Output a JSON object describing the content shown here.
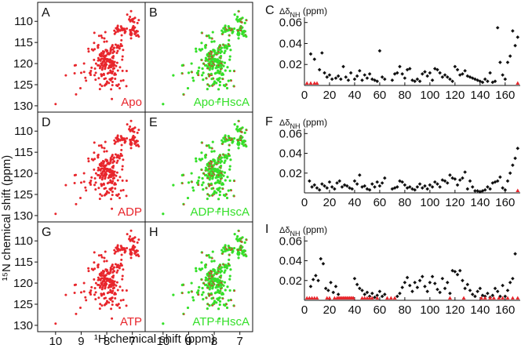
{
  "figure": {
    "y_axis_label": "¹⁵N chemical shift (ppm)",
    "x_axis_label": "¹H chemical shift (ppm)",
    "colors": {
      "red": "#e8262c",
      "green": "#35e02a",
      "black": "#111111"
    }
  },
  "chart_data": [
    {
      "type": "scatter",
      "subtype": "nmr_hsqc_spectra",
      "xlabel": "¹H chemical shift (ppm)",
      "ylabel": "¹⁵N chemical shift (ppm)",
      "x_ticks": [
        "10",
        "9",
        "8",
        "7"
      ],
      "y_ticks": [
        "110",
        "115",
        "120",
        "125",
        "130"
      ],
      "xlim": [
        10.7,
        6.5
      ],
      "ylim": [
        105.5,
        131.5
      ],
      "panels": [
        {
          "label": "A",
          "condition": "Apo",
          "color": "red"
        },
        {
          "label": "B",
          "condition": "Apo+HscA",
          "color": "green"
        },
        {
          "label": "D",
          "condition": "ADP",
          "color": "red"
        },
        {
          "label": "E",
          "condition": "ADP+HscA",
          "color": "green"
        },
        {
          "label": "G",
          "condition": "ATP",
          "color": "red"
        },
        {
          "label": "H",
          "condition": "ATP+HscA",
          "color": "green"
        }
      ]
    },
    {
      "type": "scatter",
      "subtype": "chemical_shift_perturbation",
      "ylabel_symbol": "Δδ",
      "ylabel_subscript": "NH",
      "ylabel_units": "(ppm)",
      "x_ticks": [
        "0",
        "20",
        "40",
        "60",
        "80",
        "100",
        "120",
        "140",
        "160"
      ],
      "y_ticks": [
        "0.02",
        "0.04",
        "0.06"
      ],
      "xlim": [
        0,
        172
      ],
      "ylim": [
        0,
        0.065
      ],
      "panels": [
        {
          "label": "C",
          "points": [
            [
              5,
              0.03
            ],
            [
              8,
              0.025
            ],
            [
              12,
              0.015
            ],
            [
              14,
              0.031
            ],
            [
              16,
              0.012
            ],
            [
              18,
              0.008
            ],
            [
              20,
              0.01
            ],
            [
              22,
              0.006
            ],
            [
              25,
              0.007
            ],
            [
              27,
              0.009
            ],
            [
              29,
              0.006
            ],
            [
              31,
              0.018
            ],
            [
              33,
              0.008
            ],
            [
              35,
              0.005
            ],
            [
              37,
              0.012
            ],
            [
              40,
              0.006
            ],
            [
              42,
              0.009
            ],
            [
              44,
              0.014
            ],
            [
              46,
              0.005
            ],
            [
              48,
              0.01
            ],
            [
              50,
              0.007
            ],
            [
              52,
              0.011
            ],
            [
              54,
              0.006
            ],
            [
              56,
              0.005
            ],
            [
              58,
              0.004
            ],
            [
              60,
              0.033
            ],
            [
              62,
              0.008
            ],
            [
              64,
              0.006
            ],
            [
              70,
              0.005
            ],
            [
              72,
              0.011
            ],
            [
              74,
              0.012
            ],
            [
              76,
              0.018
            ],
            [
              78,
              0.011
            ],
            [
              80,
              0.007
            ],
            [
              82,
              0.015
            ],
            [
              84,
              0.016
            ],
            [
              86,
              0.005
            ],
            [
              88,
              0.004
            ],
            [
              90,
              0.006
            ],
            [
              92,
              0.004
            ],
            [
              94,
              0.011
            ],
            [
              96,
              0.013
            ],
            [
              98,
              0.009
            ],
            [
              100,
              0.012
            ],
            [
              102,
              0.005
            ],
            [
              104,
              0.016
            ],
            [
              106,
              0.015
            ],
            [
              108,
              0.012
            ],
            [
              110,
              0.008
            ],
            [
              112,
              0.01
            ],
            [
              114,
              0.008
            ],
            [
              116,
              0.006
            ],
            [
              118,
              0.004
            ],
            [
              120,
              0.018
            ],
            [
              122,
              0.015
            ],
            [
              124,
              0.01
            ],
            [
              126,
              0.011
            ],
            [
              128,
              0.014
            ],
            [
              130,
              0.009
            ],
            [
              132,
              0.008
            ],
            [
              134,
              0.007
            ],
            [
              136,
              0.006
            ],
            [
              138,
              0.005
            ],
            [
              140,
              0.004
            ],
            [
              142,
              0.003
            ],
            [
              144,
              0.006
            ],
            [
              146,
              0.004
            ],
            [
              148,
              0.012
            ],
            [
              150,
              0.003
            ],
            [
              152,
              0.004
            ],
            [
              154,
              0.055
            ],
            [
              156,
              0.022
            ],
            [
              158,
              0.01
            ],
            [
              160,
              0.006
            ],
            [
              162,
              0.022
            ],
            [
              164,
              0.028
            ],
            [
              166,
              0.052
            ],
            [
              168,
              0.038
            ],
            [
              170,
              0.046
            ]
          ],
          "red_markers": [
            2,
            5,
            8,
            10,
            170
          ]
        },
        {
          "label": "F",
          "points": [
            [
              4,
              0.012
            ],
            [
              6,
              0.006
            ],
            [
              8,
              0.008
            ],
            [
              10,
              0.005
            ],
            [
              12,
              0.003
            ],
            [
              14,
              0.009
            ],
            [
              16,
              0.007
            ],
            [
              18,
              0.005
            ],
            [
              20,
              0.011
            ],
            [
              22,
              0.006
            ],
            [
              24,
              0.004
            ],
            [
              26,
              0.01
            ],
            [
              28,
              0.012
            ],
            [
              30,
              0.006
            ],
            [
              32,
              0.008
            ],
            [
              34,
              0.007
            ],
            [
              36,
              0.005
            ],
            [
              38,
              0.004
            ],
            [
              40,
              0.012
            ],
            [
              42,
              0.009
            ],
            [
              44,
              0.018
            ],
            [
              46,
              0.006
            ],
            [
              48,
              0.007
            ],
            [
              50,
              0.004
            ],
            [
              52,
              0.003
            ],
            [
              54,
              0.009
            ],
            [
              56,
              0.006
            ],
            [
              58,
              0.011
            ],
            [
              60,
              0.007
            ],
            [
              62,
              0.01
            ],
            [
              64,
              0.015
            ],
            [
              70,
              0.004
            ],
            [
              72,
              0.005
            ],
            [
              74,
              0.006
            ],
            [
              76,
              0.012
            ],
            [
              78,
              0.011
            ],
            [
              80,
              0.008
            ],
            [
              82,
              0.005
            ],
            [
              84,
              0.006
            ],
            [
              86,
              0.004
            ],
            [
              88,
              0.003
            ],
            [
              90,
              0.006
            ],
            [
              92,
              0.009
            ],
            [
              94,
              0.005
            ],
            [
              96,
              0.007
            ],
            [
              98,
              0.004
            ],
            [
              100,
              0.008
            ],
            [
              102,
              0.006
            ],
            [
              104,
              0.011
            ],
            [
              106,
              0.009
            ],
            [
              108,
              0.006
            ],
            [
              110,
              0.013
            ],
            [
              112,
              0.012
            ],
            [
              114,
              0.01
            ],
            [
              116,
              0.018
            ],
            [
              118,
              0.015
            ],
            [
              120,
              0.014
            ],
            [
              122,
              0.008
            ],
            [
              124,
              0.013
            ],
            [
              126,
              0.015
            ],
            [
              128,
              0.021
            ],
            [
              130,
              0.004
            ],
            [
              132,
              0.012
            ],
            [
              134,
              0.006
            ],
            [
              136,
              0.002
            ],
            [
              138,
              0.002
            ],
            [
              140,
              0.001
            ],
            [
              142,
              0.002
            ],
            [
              144,
              0.003
            ],
            [
              146,
              0.006
            ],
            [
              148,
              0.004
            ],
            [
              150,
              0.01
            ],
            [
              152,
              0.011
            ],
            [
              154,
              0.012
            ],
            [
              156,
              0.016
            ],
            [
              158,
              0.005
            ],
            [
              160,
              0.003
            ],
            [
              162,
              0.012
            ],
            [
              164,
              0.02
            ],
            [
              166,
              0.028
            ],
            [
              168,
              0.035
            ],
            [
              170,
              0.045
            ]
          ],
          "red_markers": [
            170
          ]
        },
        {
          "label": "I",
          "points": [
            [
              5,
              0.014
            ],
            [
              7,
              0.021
            ],
            [
              9,
              0.025
            ],
            [
              11,
              0.02
            ],
            [
              13,
              0.042
            ],
            [
              15,
              0.037
            ],
            [
              17,
              0.012
            ],
            [
              19,
              0.01
            ],
            [
              21,
              0.018
            ],
            [
              23,
              0.008
            ],
            [
              25,
              0.014
            ],
            [
              27,
              0.006
            ],
            [
              40,
              0.022
            ],
            [
              42,
              0.016
            ],
            [
              44,
              0.012
            ],
            [
              46,
              0.01
            ],
            [
              48,
              0.006
            ],
            [
              50,
              0.008
            ],
            [
              52,
              0.004
            ],
            [
              54,
              0.007
            ],
            [
              56,
              0.003
            ],
            [
              58,
              0.005
            ],
            [
              60,
              0.009
            ],
            [
              62,
              0.004
            ],
            [
              64,
              0.006
            ],
            [
              74,
              0.004
            ],
            [
              76,
              0.007
            ],
            [
              78,
              0.013
            ],
            [
              80,
              0.018
            ],
            [
              82,
              0.023
            ],
            [
              84,
              0.015
            ],
            [
              86,
              0.009
            ],
            [
              88,
              0.018
            ],
            [
              90,
              0.013
            ],
            [
              92,
              0.02
            ],
            [
              94,
              0.024
            ],
            [
              96,
              0.014
            ],
            [
              98,
              0.009
            ],
            [
              100,
              0.018
            ],
            [
              102,
              0.024
            ],
            [
              104,
              0.017
            ],
            [
              106,
              0.011
            ],
            [
              108,
              0.008
            ],
            [
              110,
              0.022
            ],
            [
              112,
              0.012
            ],
            [
              114,
              0.018
            ],
            [
              116,
              0.007
            ],
            [
              118,
              0.03
            ],
            [
              120,
              0.029
            ],
            [
              122,
              0.026
            ],
            [
              124,
              0.03
            ],
            [
              126,
              0.02
            ],
            [
              128,
              0.012
            ],
            [
              130,
              0.016
            ],
            [
              132,
              0.01
            ],
            [
              134,
              0.006
            ],
            [
              136,
              0.004
            ],
            [
              138,
              0.009
            ],
            [
              140,
              0.012
            ],
            [
              142,
              0.005
            ],
            [
              144,
              0.004
            ],
            [
              146,
              0.007
            ],
            [
              148,
              0.003
            ],
            [
              150,
              0.005
            ],
            [
              152,
              0.012
            ],
            [
              154,
              0.009
            ],
            [
              156,
              0.004
            ],
            [
              158,
              0.015
            ],
            [
              160,
              0.004
            ],
            [
              162,
              0.01
            ],
            [
              164,
              0.018
            ],
            [
              166,
              0.022
            ],
            [
              168,
              0.047
            ]
          ],
          "red_markers": [
            2,
            4,
            6,
            8,
            10,
            18,
            20,
            24,
            26,
            27,
            28,
            29,
            30,
            31,
            32,
            33,
            34,
            35,
            36,
            37,
            38,
            39,
            46,
            48,
            50,
            52,
            54,
            58,
            66,
            69,
            72,
            116,
            127,
            141,
            144,
            148,
            151,
            155,
            158,
            162,
            166,
            170
          ]
        }
      ]
    }
  ]
}
